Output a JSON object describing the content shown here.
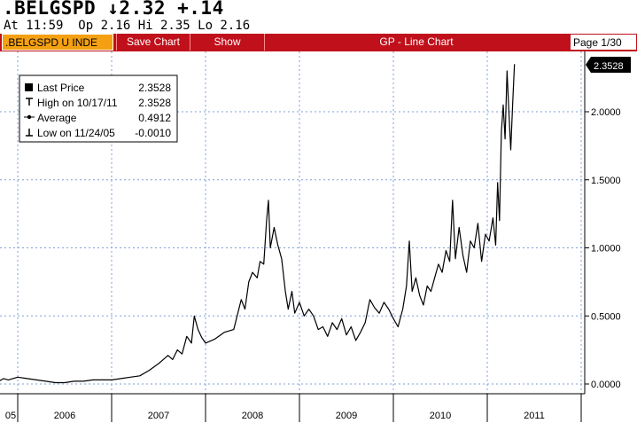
{
  "header": {
    "ticker_line": ".BELGSPD ↓2.32 +.14",
    "quote_line": "At 11:59  Op 2.16 Hi 2.35 Lo 2.16"
  },
  "toolbar": {
    "security": ".BELGSPD U INDE",
    "save_chart": "Save Chart",
    "show": "Show",
    "title": "GP - Line Chart",
    "page": "Page 1/30"
  },
  "legend": {
    "items": [
      {
        "label": "Last Price",
        "value": "2.3528",
        "icon": "square-icon"
      },
      {
        "label": "High on 10/17/11",
        "value": "2.3528",
        "icon": "high-marker-icon"
      },
      {
        "label": "Average",
        "value": "0.4912",
        "icon": "average-line-icon"
      },
      {
        "label": "Low on 11/24/05",
        "value": "-0.0010",
        "icon": "low-marker-icon"
      }
    ]
  },
  "last_price_tag": "2.3528",
  "colors": {
    "toolbar_red": "#c0101b",
    "security_orange": "#f5a012",
    "grid_blue": "#7f9fd9",
    "line": "#000000"
  },
  "chart_data": {
    "type": "line",
    "title": "",
    "xlabel": "",
    "ylabel": "",
    "ylim": [
      -0.05,
      2.5
    ],
    "x_ticks": [
      "05",
      "2006",
      "2007",
      "2008",
      "2009",
      "2010",
      "2011"
    ],
    "y_ticks": [
      "0.0000",
      "0.5000",
      "1.0000",
      "1.5000",
      "2.0000"
    ],
    "grid": true,
    "legend_position": "top-left",
    "series": [
      {
        "values": [
          [
            2005.75,
            0.03
          ],
          [
            2005.8,
            0.02
          ],
          [
            2005.85,
            0.04
          ],
          [
            2005.9,
            0.03
          ],
          [
            2006.0,
            0.05
          ],
          [
            2006.1,
            0.04
          ],
          [
            2006.2,
            0.03
          ],
          [
            2006.3,
            0.02
          ],
          [
            2006.4,
            0.01
          ],
          [
            2006.5,
            0.01
          ],
          [
            2006.6,
            0.02
          ],
          [
            2006.7,
            0.02
          ],
          [
            2006.8,
            0.03
          ],
          [
            2006.9,
            0.03
          ],
          [
            2007.0,
            0.03
          ],
          [
            2007.1,
            0.04
          ],
          [
            2007.2,
            0.05
          ],
          [
            2007.3,
            0.06
          ],
          [
            2007.4,
            0.1
          ],
          [
            2007.5,
            0.15
          ],
          [
            2007.55,
            0.18
          ],
          [
            2007.6,
            0.21
          ],
          [
            2007.65,
            0.18
          ],
          [
            2007.7,
            0.25
          ],
          [
            2007.75,
            0.22
          ],
          [
            2007.8,
            0.35
          ],
          [
            2007.85,
            0.3
          ],
          [
            2007.88,
            0.5
          ],
          [
            2007.92,
            0.4
          ],
          [
            2007.96,
            0.34
          ],
          [
            2008.0,
            0.3
          ],
          [
            2008.1,
            0.33
          ],
          [
            2008.2,
            0.38
          ],
          [
            2008.3,
            0.4
          ],
          [
            2008.38,
            0.62
          ],
          [
            2008.42,
            0.55
          ],
          [
            2008.46,
            0.75
          ],
          [
            2008.5,
            0.82
          ],
          [
            2008.55,
            0.78
          ],
          [
            2008.58,
            0.9
          ],
          [
            2008.62,
            0.88
          ],
          [
            2008.65,
            1.2
          ],
          [
            2008.67,
            1.35
          ],
          [
            2008.69,
            1.0
          ],
          [
            2008.73,
            1.15
          ],
          [
            2008.77,
            1.02
          ],
          [
            2008.81,
            0.92
          ],
          [
            2008.85,
            0.68
          ],
          [
            2008.88,
            0.55
          ],
          [
            2008.92,
            0.68
          ],
          [
            2008.95,
            0.52
          ],
          [
            2009.0,
            0.6
          ],
          [
            2009.05,
            0.5
          ],
          [
            2009.1,
            0.55
          ],
          [
            2009.15,
            0.5
          ],
          [
            2009.2,
            0.4
          ],
          [
            2009.25,
            0.42
          ],
          [
            2009.3,
            0.35
          ],
          [
            2009.35,
            0.45
          ],
          [
            2009.4,
            0.4
          ],
          [
            2009.45,
            0.48
          ],
          [
            2009.5,
            0.36
          ],
          [
            2009.55,
            0.42
          ],
          [
            2009.6,
            0.32
          ],
          [
            2009.65,
            0.38
          ],
          [
            2009.7,
            0.45
          ],
          [
            2009.75,
            0.62
          ],
          [
            2009.8,
            0.56
          ],
          [
            2009.85,
            0.52
          ],
          [
            2009.9,
            0.6
          ],
          [
            2009.95,
            0.55
          ],
          [
            2010.0,
            0.48
          ],
          [
            2010.05,
            0.42
          ],
          [
            2010.1,
            0.55
          ],
          [
            2010.14,
            0.72
          ],
          [
            2010.17,
            1.05
          ],
          [
            2010.2,
            0.68
          ],
          [
            2010.24,
            0.78
          ],
          [
            2010.28,
            0.65
          ],
          [
            2010.32,
            0.58
          ],
          [
            2010.36,
            0.72
          ],
          [
            2010.4,
            0.68
          ],
          [
            2010.44,
            0.78
          ],
          [
            2010.48,
            0.88
          ],
          [
            2010.52,
            0.82
          ],
          [
            2010.56,
            0.98
          ],
          [
            2010.6,
            0.9
          ],
          [
            2010.63,
            1.35
          ],
          [
            2010.66,
            0.92
          ],
          [
            2010.7,
            1.15
          ],
          [
            2010.74,
            0.95
          ],
          [
            2010.78,
            0.82
          ],
          [
            2010.82,
            1.05
          ],
          [
            2010.86,
            1.0
          ],
          [
            2010.9,
            1.18
          ],
          [
            2010.94,
            0.9
          ],
          [
            2010.98,
            1.1
          ],
          [
            2011.02,
            1.05
          ],
          [
            2011.06,
            1.22
          ],
          [
            2011.09,
            1.02
          ],
          [
            2011.11,
            1.48
          ],
          [
            2011.13,
            1.2
          ],
          [
            2011.15,
            1.85
          ],
          [
            2011.17,
            2.05
          ],
          [
            2011.19,
            1.8
          ],
          [
            2011.21,
            2.3
          ],
          [
            2011.23,
            2.0
          ],
          [
            2011.25,
            1.72
          ],
          [
            2011.27,
            2.05
          ],
          [
            2011.29,
            2.35
          ]
        ]
      }
    ]
  }
}
